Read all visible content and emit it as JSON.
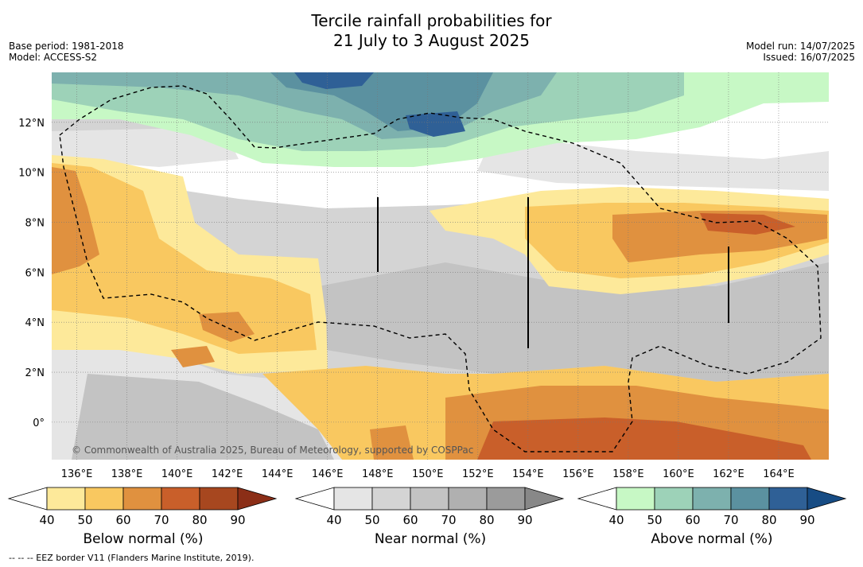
{
  "title_line1": "Tercile rainfall probabilities for",
  "title_line2": "21 July to 3 August 2025",
  "meta_left": [
    "Base period: 1981-2018",
    "Model: ACCESS-S2"
  ],
  "meta_right": [
    "Model run: 14/07/2025",
    "Issued: 16/07/2025"
  ],
  "map": {
    "lon_range": [
      135,
      166
    ],
    "lat_range": [
      -1.5,
      14
    ],
    "lon_ticks": [
      136,
      138,
      140,
      142,
      144,
      146,
      148,
      150,
      152,
      154,
      156,
      158,
      160,
      162,
      164
    ],
    "lon_tick_labels": [
      "136°E",
      "138°E",
      "140°E",
      "142°E",
      "144°E",
      "146°E",
      "148°E",
      "150°E",
      "152°E",
      "154°E",
      "156°E",
      "158°E",
      "160°E",
      "162°E",
      "164°E"
    ],
    "lat_ticks": [
      0,
      2,
      4,
      6,
      8,
      10,
      12
    ],
    "lat_tick_labels": [
      "0°",
      "2°N",
      "4°N",
      "6°N",
      "8°N",
      "10°N",
      "12°N"
    ],
    "grid": true,
    "copyright": "© Commonwealth of Australia 2025, Bureau of Meteorology, supported by COSPPac",
    "colors": {
      "below": [
        "#fde99a",
        "#f9c860",
        "#e0913f",
        "#c95f2a",
        "#a7471f",
        "#8b2e17"
      ],
      "near": [
        "#e5e5e5",
        "#d4d4d4",
        "#c3c3c3",
        "#b0b0b0",
        "#9b9b9b",
        "#888888"
      ],
      "above": [
        "#c7f8c5",
        "#9dd2b8",
        "#7db1ae",
        "#5b91a0",
        "#2f6096",
        "#174c84"
      ]
    }
  },
  "colorbars": [
    {
      "title": "Below normal (%)",
      "tick_labels": [
        "40",
        "50",
        "60",
        "70",
        "80",
        "90"
      ]
    },
    {
      "title": "Near normal (%)",
      "tick_labels": [
        "40",
        "50",
        "60",
        "70",
        "80",
        "90"
      ]
    },
    {
      "title": "Above normal (%)",
      "tick_labels": [
        "40",
        "50",
        "60",
        "70",
        "80",
        "90"
      ]
    }
  ],
  "footnote": "--  --  -- EEZ border V11 (Flanders Marine Institute, 2019)."
}
